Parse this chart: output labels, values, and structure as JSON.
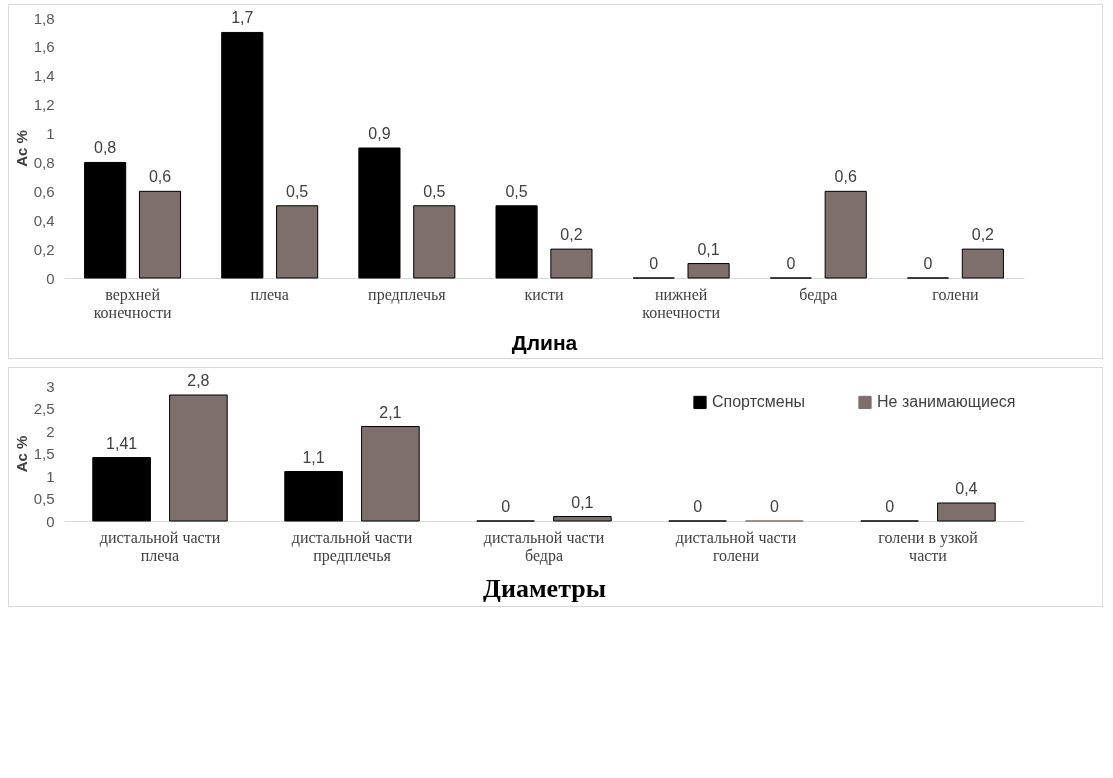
{
  "chart_data": [
    {
      "type": "bar",
      "xlabel": "Длина",
      "ylabel": "Ac %",
      "categories": [
        "верхней\nконечности",
        "плеча",
        "предплечья",
        "кисти",
        "нижней\nконечности",
        "бедра",
        "голени"
      ],
      "series": [
        {
          "color": "#000000",
          "values": [
            0.8,
            1.7,
            0.9,
            0.5,
            0,
            0,
            0
          ],
          "value_labels": [
            "0,8",
            "1,7",
            "0,9",
            "0,5",
            "0",
            "0",
            "0"
          ]
        },
        {
          "color": "#7f6f6c",
          "values": [
            0.6,
            0.5,
            0.5,
            0.2,
            0.1,
            0.6,
            0.2
          ],
          "value_labels": [
            "0,6",
            "0,5",
            "0,5",
            "0,2",
            "0,1",
            "0,6",
            "0,2"
          ]
        }
      ],
      "ylim": [
        0,
        1.8
      ],
      "yticks": [
        0,
        {
          "value": 0.2,
          "label": "0,2"
        },
        {
          "value": 0.4,
          "label": "0,4"
        },
        {
          "value": 0.6,
          "label": "0,6"
        },
        {
          "value": 0.8,
          "label": "0,8"
        },
        1,
        {
          "value": 1.2,
          "label": "1,2"
        },
        {
          "value": 1.4,
          "label": "1,4"
        },
        {
          "value": 1.6,
          "label": "1,6"
        },
        {
          "value": 1.8,
          "label": "1,8"
        }
      ],
      "grid": false,
      "legend": false
    },
    {
      "type": "bar",
      "xlabel": "Диаметры",
      "ylabel": "Ac %",
      "categories": [
        "дистальной части\nплеча",
        "дистальной части\nпредплечья",
        "дистальной части\nбедра",
        "дистальной части\nголени",
        "голени в узкой\nчасти"
      ],
      "series": [
        {
          "name": "Спортсмены",
          "color": "#000000",
          "values": [
            1.41,
            1.1,
            0,
            0,
            0
          ],
          "value_labels": [
            "1,41",
            "1,1",
            "0",
            "0",
            "0"
          ]
        },
        {
          "name": "Не занимающиеся",
          "color": "#7f6f6c",
          "values": [
            2.8,
            2.1,
            0.1,
            0,
            0.4
          ],
          "value_labels": [
            "2,8",
            "2,1",
            "0,1",
            "0",
            "0,4"
          ]
        }
      ],
      "ylim": [
        0,
        3
      ],
      "yticks": [
        0,
        {
          "value": 0.5,
          "label": "0,5"
        },
        1,
        {
          "value": 1.5,
          "label": "1,5"
        },
        2,
        {
          "value": 2.5,
          "label": "2,5"
        },
        3
      ],
      "grid": false,
      "legend": "top right"
    }
  ]
}
